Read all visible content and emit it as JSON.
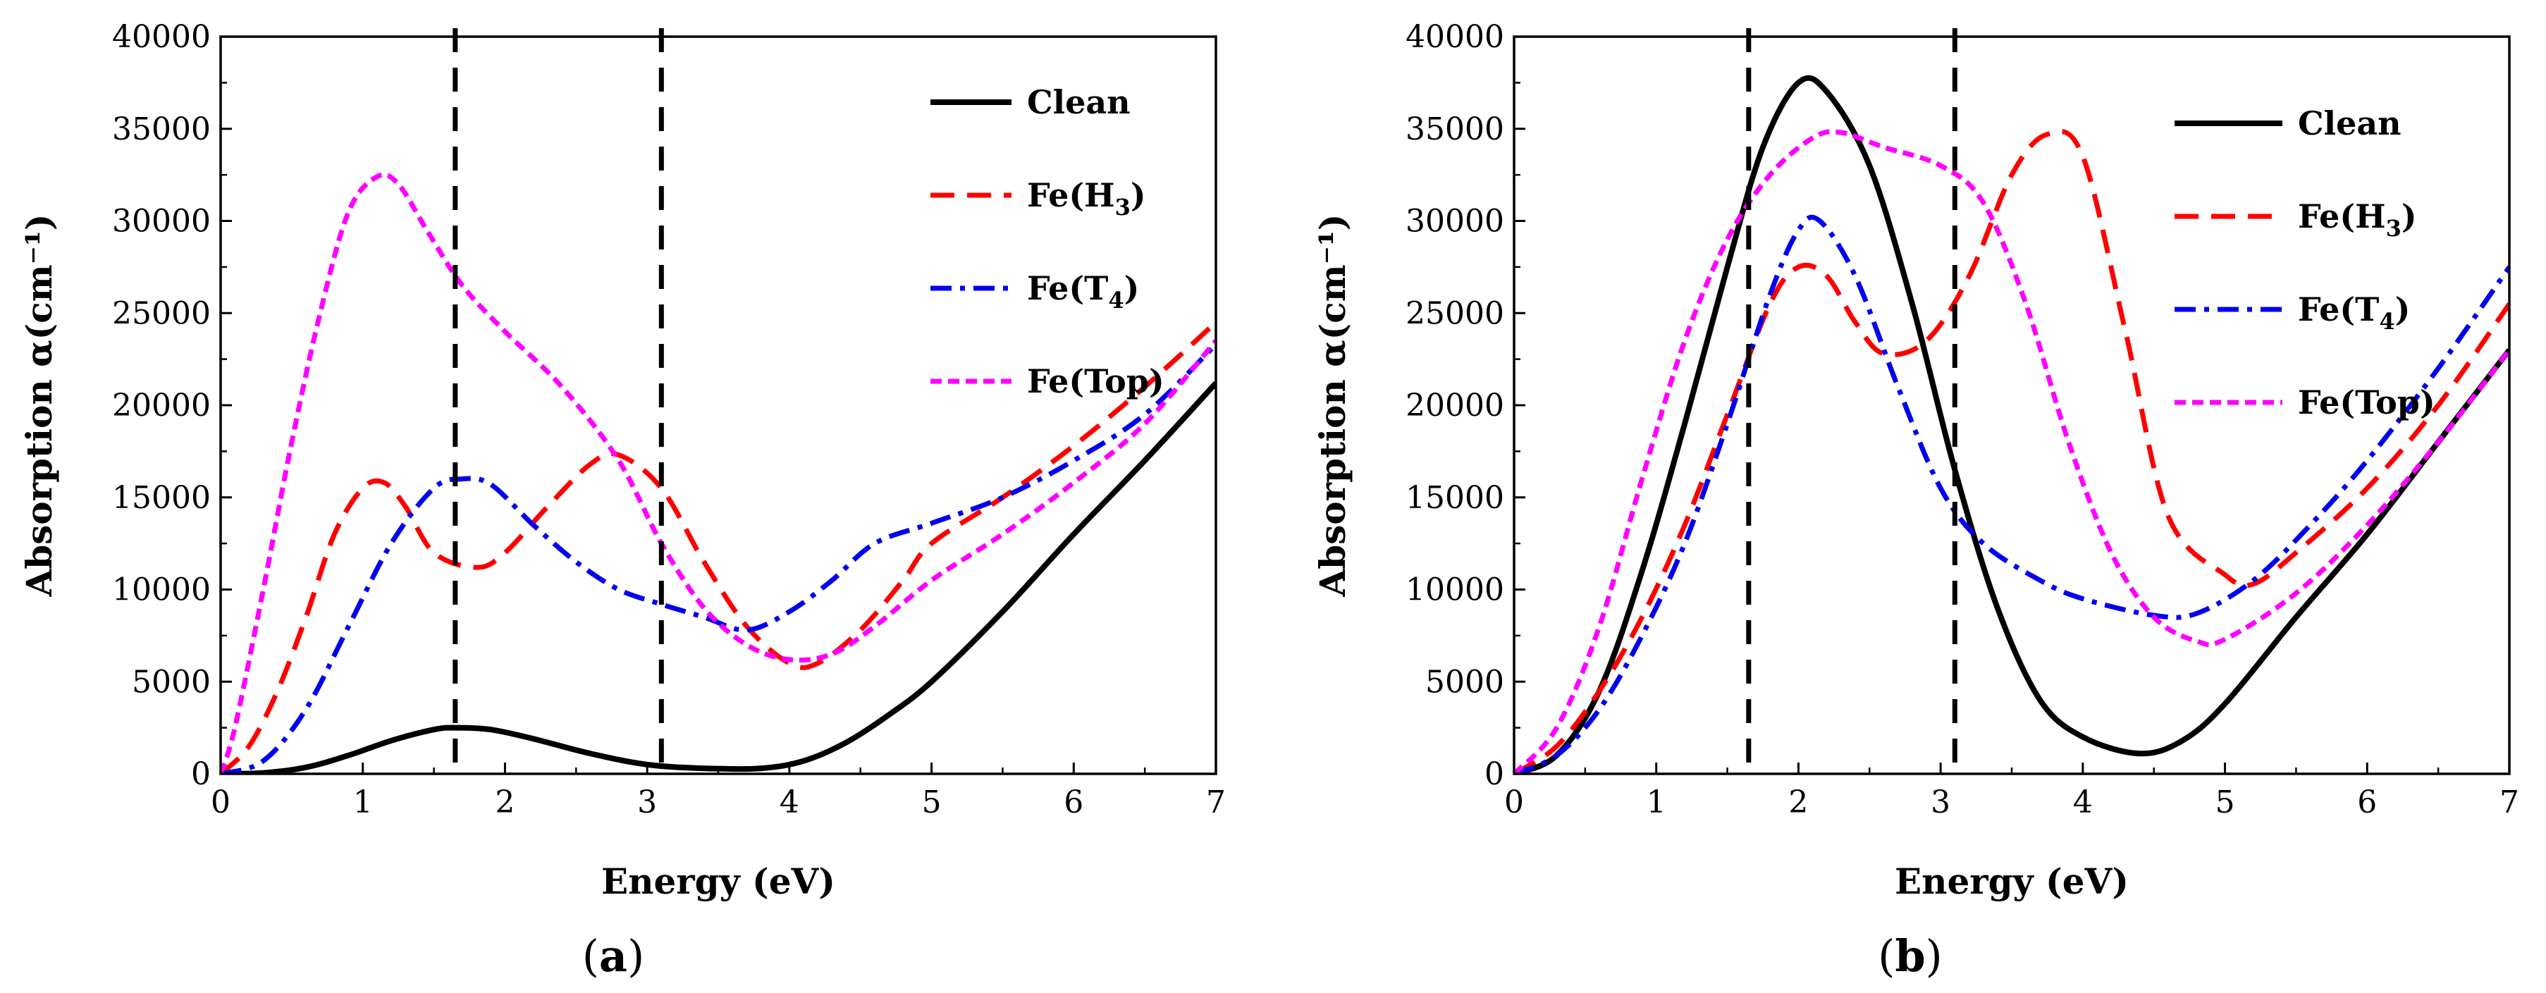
{
  "figure": {
    "panel_label_a": "a",
    "panel_label_b": "b"
  },
  "colors": {
    "Clean": "#000000",
    "Fe(H3)": "#ff0000",
    "Fe(T4)": "#0000ee",
    "Fe(Top)": "#ff00ff",
    "marker": "#000000"
  },
  "chart_data": [
    {
      "type": "line",
      "panel": "a",
      "xlabel": "Energy (eV)",
      "ylabel": "Absorption α(cm⁻¹)",
      "xlim": [
        0,
        7
      ],
      "ylim": [
        0,
        40000
      ],
      "x_ticks": [
        0,
        1,
        2,
        3,
        4,
        5,
        6,
        7
      ],
      "y_ticks": [
        0,
        5000,
        10000,
        15000,
        20000,
        25000,
        30000,
        35000,
        40000
      ],
      "vertical_markers": [
        1.65,
        3.1
      ],
      "legend_position": "top-right",
      "series": [
        {
          "name": "Clean",
          "label_main": "Clean",
          "label_sub": "",
          "label_suffix": "",
          "style": "solid",
          "points": [
            [
              0,
              0
            ],
            [
              0.3,
              50
            ],
            [
              0.6,
              350
            ],
            [
              0.9,
              1000
            ],
            [
              1.2,
              1800
            ],
            [
              1.5,
              2400
            ],
            [
              1.65,
              2500
            ],
            [
              1.9,
              2400
            ],
            [
              2.2,
              1900
            ],
            [
              2.6,
              1100
            ],
            [
              3.0,
              500
            ],
            [
              3.4,
              300
            ],
            [
              3.8,
              300
            ],
            [
              4.1,
              700
            ],
            [
              4.4,
              1700
            ],
            [
              4.7,
              3200
            ],
            [
              5.0,
              5000
            ],
            [
              5.5,
              8800
            ],
            [
              6.0,
              13000
            ],
            [
              6.5,
              17000
            ],
            [
              7.0,
              21200
            ]
          ]
        },
        {
          "name": "Fe(H3)",
          "label_main": "Fe(H",
          "label_sub": "3",
          "label_suffix": ")",
          "style": "dashed",
          "points": [
            [
              0,
              0
            ],
            [
              0.2,
              1500
            ],
            [
              0.4,
              4500
            ],
            [
              0.6,
              8500
            ],
            [
              0.8,
              13000
            ],
            [
              1.0,
              15500
            ],
            [
              1.15,
              15800
            ],
            [
              1.3,
              14500
            ],
            [
              1.5,
              12000
            ],
            [
              1.8,
              11200
            ],
            [
              2.0,
              12000
            ],
            [
              2.3,
              14500
            ],
            [
              2.6,
              16800
            ],
            [
              2.8,
              17300
            ],
            [
              3.1,
              15500
            ],
            [
              3.4,
              11500
            ],
            [
              3.7,
              8000
            ],
            [
              4.0,
              6000
            ],
            [
              4.2,
              6000
            ],
            [
              4.5,
              7800
            ],
            [
              4.8,
              10500
            ],
            [
              5.0,
              12500
            ],
            [
              5.5,
              15000
            ],
            [
              6.0,
              17800
            ],
            [
              6.5,
              21000
            ],
            [
              7.0,
              24500
            ]
          ]
        },
        {
          "name": "Fe(T4)",
          "label_main": "Fe(T",
          "label_sub": "4",
          "label_suffix": ")",
          "style": "dashdot",
          "points": [
            [
              0,
              0
            ],
            [
              0.3,
              700
            ],
            [
              0.6,
              3500
            ],
            [
              0.9,
              8000
            ],
            [
              1.2,
              12500
            ],
            [
              1.5,
              15500
            ],
            [
              1.7,
              16000
            ],
            [
              1.9,
              15700
            ],
            [
              2.2,
              13500
            ],
            [
              2.5,
              11500
            ],
            [
              2.8,
              10000
            ],
            [
              3.1,
              9200
            ],
            [
              3.4,
              8500
            ],
            [
              3.7,
              7800
            ],
            [
              4.0,
              8800
            ],
            [
              4.3,
              10500
            ],
            [
              4.6,
              12500
            ],
            [
              5.0,
              13600
            ],
            [
              5.5,
              15000
            ],
            [
              6.0,
              17000
            ],
            [
              6.5,
              19500
            ],
            [
              7.0,
              23300
            ]
          ]
        },
        {
          "name": "Fe(Top)",
          "label_main": "Fe(Top)",
          "label_sub": "",
          "label_suffix": "",
          "style": "dotted",
          "points": [
            [
              0,
              0
            ],
            [
              0.1,
              2500
            ],
            [
              0.3,
              10000
            ],
            [
              0.5,
              18000
            ],
            [
              0.7,
              25000
            ],
            [
              0.9,
              30500
            ],
            [
              1.1,
              32400
            ],
            [
              1.25,
              32000
            ],
            [
              1.45,
              29500
            ],
            [
              1.7,
              26500
            ],
            [
              2.0,
              24000
            ],
            [
              2.4,
              21000
            ],
            [
              2.8,
              17000
            ],
            [
              3.1,
              12500
            ],
            [
              3.4,
              9000
            ],
            [
              3.7,
              7000
            ],
            [
              4.0,
              6200
            ],
            [
              4.3,
              6500
            ],
            [
              4.6,
              8000
            ],
            [
              5.0,
              10500
            ],
            [
              5.5,
              13000
            ],
            [
              6.0,
              15800
            ],
            [
              6.5,
              19000
            ],
            [
              7.0,
              23500
            ]
          ]
        }
      ]
    },
    {
      "type": "line",
      "panel": "b",
      "xlabel": "Energy (eV)",
      "ylabel": "Absorption α(cm⁻¹)",
      "xlim": [
        0,
        7
      ],
      "ylim": [
        0,
        40000
      ],
      "x_ticks": [
        0,
        1,
        2,
        3,
        4,
        5,
        6,
        7
      ],
      "y_ticks": [
        0,
        5000,
        10000,
        15000,
        20000,
        25000,
        30000,
        35000,
        40000
      ],
      "vertical_markers": [
        1.65,
        3.1
      ],
      "legend_position": "top-right",
      "series": [
        {
          "name": "Clean",
          "label_main": "Clean",
          "label_sub": "",
          "label_suffix": "",
          "style": "solid",
          "points": [
            [
              0,
              0
            ],
            [
              0.3,
              1000
            ],
            [
              0.6,
              4500
            ],
            [
              0.9,
              11000
            ],
            [
              1.2,
              19000
            ],
            [
              1.5,
              27500
            ],
            [
              1.75,
              34000
            ],
            [
              2.0,
              37500
            ],
            [
              2.2,
              37000
            ],
            [
              2.5,
              33000
            ],
            [
              2.8,
              25500
            ],
            [
              3.1,
              16500
            ],
            [
              3.4,
              9000
            ],
            [
              3.7,
              4000
            ],
            [
              4.0,
              2000
            ],
            [
              4.4,
              1100
            ],
            [
              4.7,
              1800
            ],
            [
              5.0,
              3800
            ],
            [
              5.5,
              8500
            ],
            [
              6.0,
              13000
            ],
            [
              6.5,
              18000
            ],
            [
              7.0,
              23000
            ]
          ]
        },
        {
          "name": "Fe(H3)",
          "label_main": "Fe(H",
          "label_sub": "3",
          "label_suffix": ")",
          "style": "dashed",
          "points": [
            [
              0,
              0
            ],
            [
              0.3,
              1500
            ],
            [
              0.6,
              4500
            ],
            [
              0.9,
              8500
            ],
            [
              1.2,
              13500
            ],
            [
              1.5,
              19500
            ],
            [
              1.8,
              25500
            ],
            [
              2.0,
              27500
            ],
            [
              2.2,
              27000
            ],
            [
              2.4,
              24500
            ],
            [
              2.6,
              22800
            ],
            [
              2.9,
              23500
            ],
            [
              3.2,
              27000
            ],
            [
              3.5,
              32500
            ],
            [
              3.75,
              34700
            ],
            [
              4.0,
              33500
            ],
            [
              4.3,
              24000
            ],
            [
              4.6,
              14000
            ],
            [
              5.0,
              10800
            ],
            [
              5.2,
              10300
            ],
            [
              5.5,
              12000
            ],
            [
              6.0,
              15500
            ],
            [
              6.5,
              20000
            ],
            [
              7.0,
              25500
            ]
          ]
        },
        {
          "name": "Fe(T4)",
          "label_main": "Fe(T",
          "label_sub": "4",
          "label_suffix": ")",
          "style": "dashdot",
          "points": [
            [
              0,
              0
            ],
            [
              0.3,
              1000
            ],
            [
              0.6,
              3500
            ],
            [
              0.9,
              7500
            ],
            [
              1.2,
              12500
            ],
            [
              1.5,
              19000
            ],
            [
              1.8,
              26000
            ],
            [
              2.0,
              29500
            ],
            [
              2.15,
              30000
            ],
            [
              2.4,
              27000
            ],
            [
              2.7,
              21000
            ],
            [
              3.0,
              15500
            ],
            [
              3.3,
              12500
            ],
            [
              3.7,
              10500
            ],
            [
              4.0,
              9500
            ],
            [
              4.5,
              8600
            ],
            [
              4.8,
              8700
            ],
            [
              5.2,
              10500
            ],
            [
              5.6,
              13500
            ],
            [
              6.0,
              17000
            ],
            [
              6.5,
              22000
            ],
            [
              7.0,
              27500
            ]
          ]
        },
        {
          "name": "Fe(Top)",
          "label_main": "Fe(Top)",
          "label_sub": "",
          "label_suffix": "",
          "style": "dotted",
          "points": [
            [
              0,
              0
            ],
            [
              0.3,
              2500
            ],
            [
              0.6,
              8000
            ],
            [
              0.9,
              16000
            ],
            [
              1.2,
              23500
            ],
            [
              1.5,
              29000
            ],
            [
              1.8,
              32500
            ],
            [
              2.1,
              34500
            ],
            [
              2.3,
              34800
            ],
            [
              2.6,
              34000
            ],
            [
              3.0,
              33000
            ],
            [
              3.3,
              31000
            ],
            [
              3.6,
              25500
            ],
            [
              3.9,
              18000
            ],
            [
              4.2,
              12000
            ],
            [
              4.5,
              8500
            ],
            [
              4.8,
              7200
            ],
            [
              5.0,
              7300
            ],
            [
              5.5,
              9800
            ],
            [
              6.0,
              13500
            ],
            [
              6.5,
              18000
            ],
            [
              7.0,
              23000
            ]
          ]
        }
      ]
    }
  ]
}
